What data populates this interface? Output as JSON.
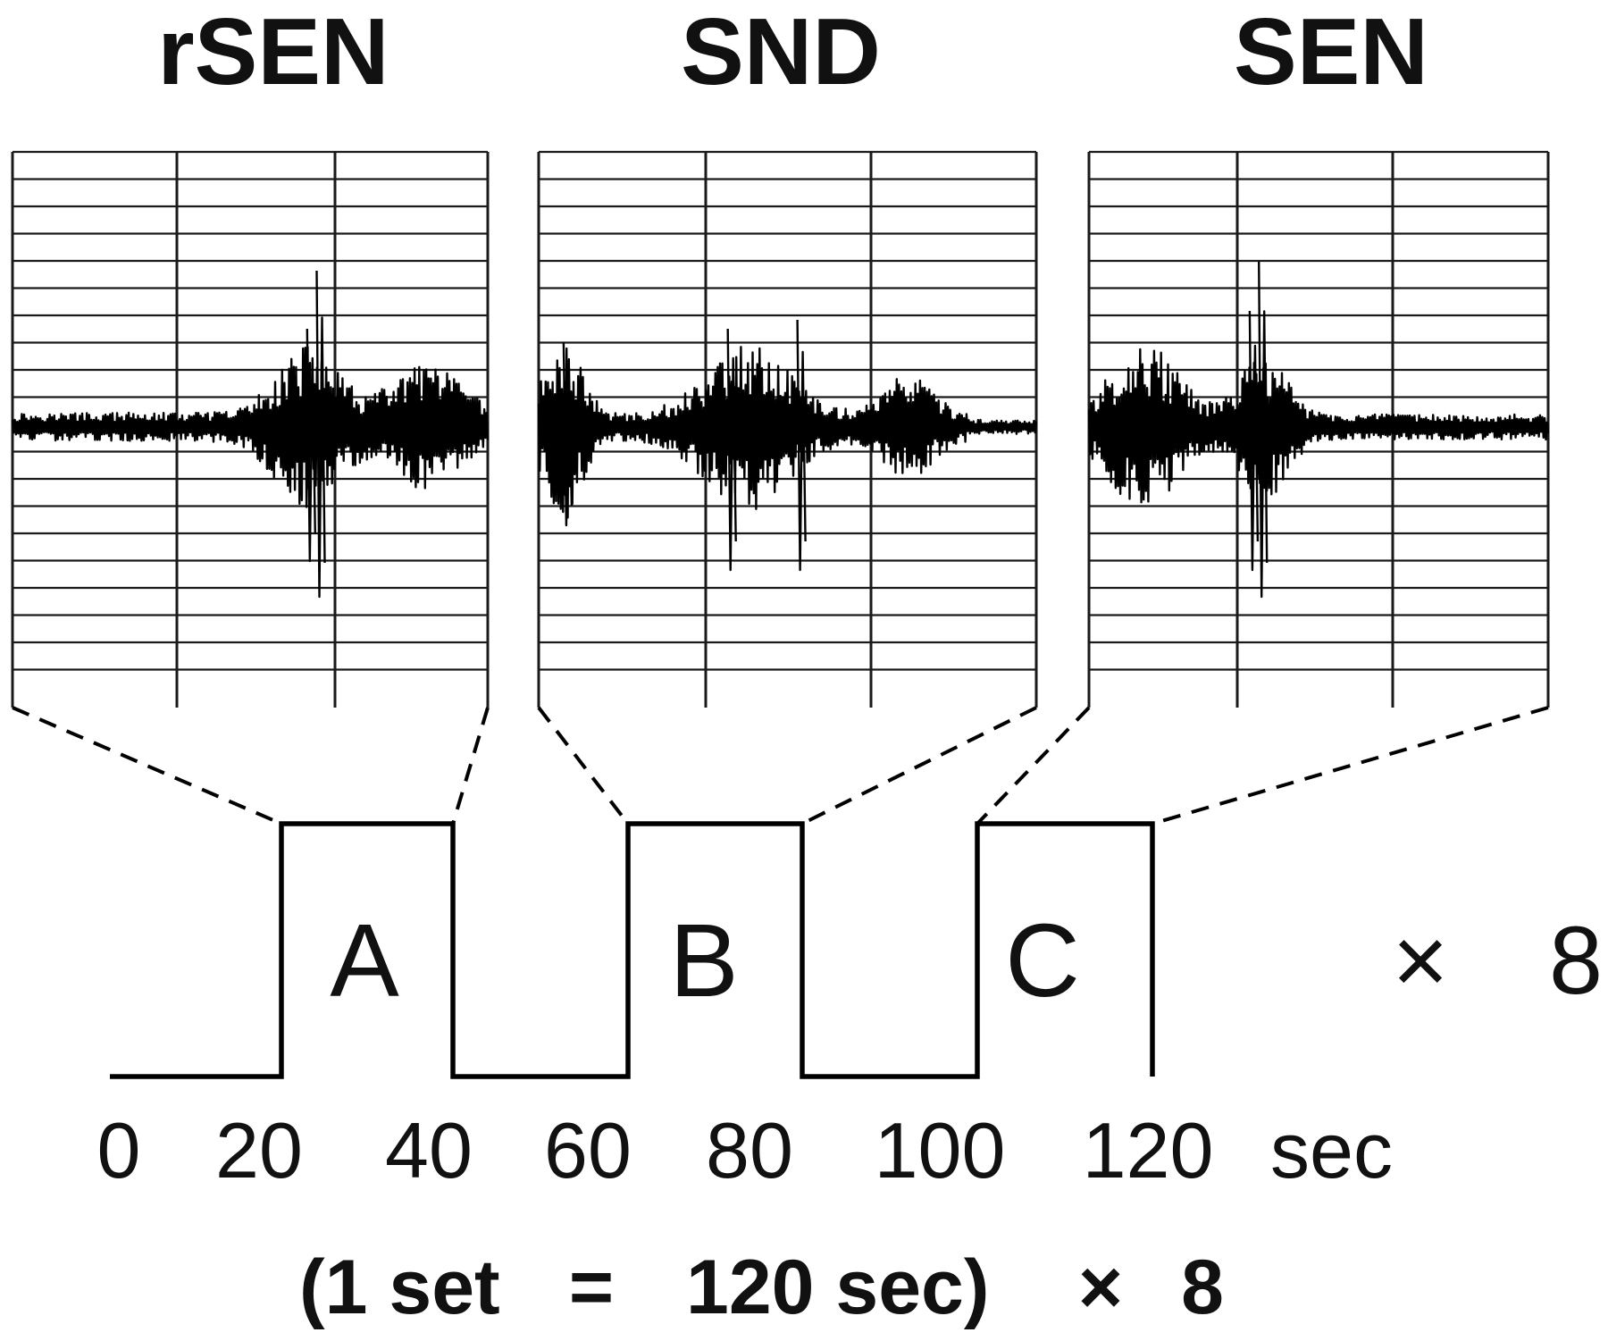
{
  "panels": [
    {
      "title": "rSEN",
      "block_label": "A"
    },
    {
      "title": "SND",
      "block_label": "B"
    },
    {
      "title": "SEN",
      "block_label": "C"
    }
  ],
  "timeline": {
    "ticks": [
      "0",
      "20",
      "40",
      "60",
      "80",
      "100",
      "120"
    ],
    "unit": "sec",
    "blocks": [
      {
        "label": "A",
        "start": 20,
        "end": 40
      },
      {
        "label": "B",
        "start": 60,
        "end": 80
      },
      {
        "label": "C",
        "start": 100,
        "end": 120
      }
    ],
    "repeat_symbol": "×",
    "repeat_count": "8"
  },
  "summary": {
    "open": "(1 set",
    "equals": "=",
    "duration": "120 sec)",
    "times": "×",
    "count": "8"
  }
}
